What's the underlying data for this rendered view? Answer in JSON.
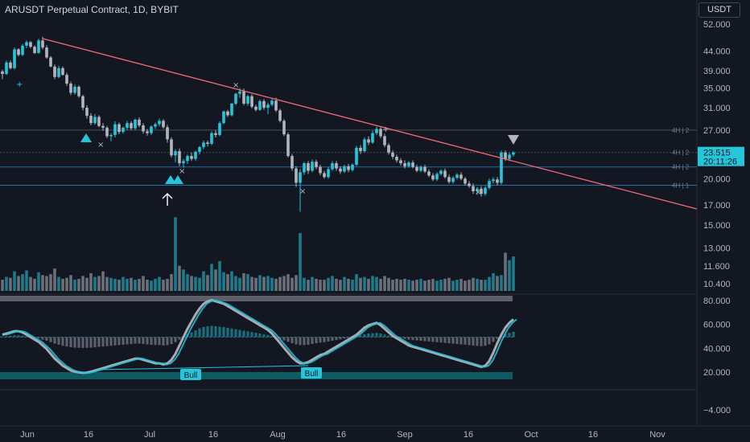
{
  "header": {
    "title": "ARUSDT Perpetual Contract, 1D, BYBIT",
    "currency": "USDT"
  },
  "colors": {
    "background": "#131722",
    "up": "#26c6da",
    "down": "#b2b5be",
    "trendline": "#f06a7a",
    "level": "#1f6fa8",
    "grid": "#363a45"
  },
  "chart_data": [
    {
      "type": "candlestick",
      "title": "ARUSDT Perpetual Contract, 1D, BYBIT",
      "y_scale": "log",
      "y_ticks": [
        "52.000",
        "44.000",
        "39.000",
        "35.000",
        "31.000",
        "27.000",
        "20.000",
        "17.000",
        "15.000",
        "13.000",
        "11.600",
        "10.400"
      ],
      "x_ticks": [
        "Jun",
        "16",
        "Jul",
        "16",
        "Aug",
        "16",
        "Sep",
        "16",
        "Oct",
        "16",
        "Nov"
      ],
      "last_price": "23.515",
      "countdown": "20:11:26",
      "level_labels": [
        "4H | 2",
        "4H | 2",
        "4H | 2",
        "4H | 1"
      ],
      "annotations": [
        "Bull",
        "Bull"
      ],
      "candles": [
        [
          38.8,
          39.2,
          37.0,
          38.2
        ],
        [
          38.2,
          41.5,
          38.0,
          41.0
        ],
        [
          41.0,
          41.5,
          39.3,
          39.6
        ],
        [
          39.6,
          45.0,
          39.3,
          44.5
        ],
        [
          44.5,
          44.8,
          42.6,
          43.0
        ],
        [
          43.0,
          46.0,
          42.7,
          45.5
        ],
        [
          45.5,
          47.0,
          44.8,
          46.5
        ],
        [
          46.5,
          46.8,
          44.8,
          45.2
        ],
        [
          45.2,
          45.6,
          43.2,
          43.5
        ],
        [
          43.5,
          47.5,
          43.3,
          47.0
        ],
        [
          47.0,
          48.1,
          44.5,
          45.0
        ],
        [
          45.0,
          45.6,
          42.0,
          42.3
        ],
        [
          42.3,
          42.7,
          39.8,
          40.0
        ],
        [
          40.0,
          40.5,
          37.0,
          37.5
        ],
        [
          37.5,
          40.2,
          37.2,
          39.6
        ],
        [
          39.6,
          40.0,
          37.8,
          38.0
        ],
        [
          38.0,
          38.5,
          35.5,
          36.0
        ],
        [
          36.0,
          36.4,
          33.5,
          34.0
        ],
        [
          34.0,
          35.8,
          33.6,
          35.3
        ],
        [
          35.3,
          35.6,
          33.0,
          33.3
        ],
        [
          33.3,
          33.6,
          30.5,
          31.0
        ],
        [
          31.0,
          31.5,
          29.0,
          29.5
        ],
        [
          29.5,
          30.0,
          27.8,
          28.2
        ],
        [
          28.2,
          29.8,
          27.9,
          29.3
        ],
        [
          29.3,
          29.6,
          27.5,
          27.7
        ],
        [
          27.7,
          28.2,
          26.9,
          27.4
        ],
        [
          27.4,
          27.7,
          25.7,
          26.0
        ],
        [
          26.0,
          26.5,
          25.2,
          26.2
        ],
        [
          26.2,
          28.5,
          25.8,
          28.0
        ],
        [
          28.0,
          28.3,
          26.3,
          26.7
        ],
        [
          26.7,
          27.6,
          26.4,
          27.4
        ],
        [
          27.4,
          28.6,
          27.0,
          28.2
        ],
        [
          28.2,
          28.5,
          27.0,
          27.3
        ],
        [
          27.3,
          29.0,
          27.0,
          28.8
        ],
        [
          28.8,
          29.2,
          27.5,
          27.8
        ],
        [
          27.8,
          28.2,
          26.4,
          26.8
        ],
        [
          26.8,
          27.2,
          26.1,
          26.5
        ],
        [
          26.5,
          27.8,
          26.2,
          27.6
        ],
        [
          27.6,
          28.3,
          27.2,
          28.0
        ],
        [
          28.0,
          29.0,
          27.6,
          28.6
        ],
        [
          28.6,
          28.9,
          27.2,
          27.5
        ],
        [
          27.5,
          27.9,
          25.0,
          25.5
        ],
        [
          25.5,
          25.8,
          22.8,
          23.1
        ],
        [
          23.1,
          24.0,
          22.1,
          23.7
        ],
        [
          23.7,
          24.1,
          21.6,
          22.0
        ],
        [
          22.0,
          22.6,
          21.4,
          22.3
        ],
        [
          22.3,
          23.2,
          21.9,
          23.0
        ],
        [
          23.0,
          23.5,
          22.3,
          22.6
        ],
        [
          22.6,
          23.8,
          22.3,
          23.6
        ],
        [
          23.6,
          24.5,
          23.2,
          24.3
        ],
        [
          24.3,
          25.3,
          24.0,
          25.0
        ],
        [
          25.0,
          25.3,
          24.4,
          24.8
        ],
        [
          24.8,
          26.8,
          24.6,
          26.5
        ],
        [
          26.5,
          27.0,
          25.8,
          26.2
        ],
        [
          26.2,
          28.5,
          26.0,
          28.2
        ],
        [
          28.2,
          30.5,
          28.0,
          30.3
        ],
        [
          30.3,
          30.6,
          29.3,
          29.6
        ],
        [
          29.6,
          32.0,
          29.4,
          31.8
        ],
        [
          31.8,
          34.0,
          31.5,
          33.8
        ],
        [
          33.8,
          35.0,
          33.0,
          34.3
        ],
        [
          34.3,
          34.9,
          31.5,
          31.8
        ],
        [
          31.8,
          33.6,
          31.4,
          33.3
        ],
        [
          33.3,
          33.7,
          30.9,
          31.2
        ],
        [
          31.2,
          31.6,
          30.3,
          30.6
        ],
        [
          30.6,
          32.6,
          30.4,
          32.3
        ],
        [
          32.3,
          32.7,
          30.6,
          31.0
        ],
        [
          31.0,
          32.0,
          29.8,
          31.6
        ],
        [
          31.6,
          32.8,
          31.3,
          32.4
        ],
        [
          32.4,
          33.0,
          30.2,
          30.5
        ],
        [
          30.5,
          30.8,
          28.3,
          28.6
        ],
        [
          28.6,
          28.9,
          26.0,
          26.3
        ],
        [
          26.3,
          26.6,
          22.8,
          23.0
        ],
        [
          23.0,
          23.3,
          21.0,
          21.3
        ],
        [
          21.3,
          21.6,
          19.0,
          19.5
        ],
        [
          19.5,
          21.2,
          16.3,
          20.8
        ],
        [
          20.8,
          22.2,
          20.5,
          22.0
        ],
        [
          22.0,
          22.3,
          20.6,
          21.0
        ],
        [
          21.0,
          22.5,
          20.8,
          22.2
        ],
        [
          22.2,
          22.5,
          21.2,
          21.5
        ],
        [
          21.5,
          21.8,
          20.4,
          20.7
        ],
        [
          20.7,
          21.0,
          20.0,
          20.2
        ],
        [
          20.2,
          21.5,
          20.0,
          21.2
        ],
        [
          21.2,
          22.3,
          21.0,
          22.0
        ],
        [
          22.0,
          22.3,
          21.0,
          21.3
        ],
        [
          21.3,
          21.6,
          20.6,
          20.9
        ],
        [
          20.9,
          21.8,
          20.7,
          21.6
        ],
        [
          21.6,
          21.9,
          20.8,
          21.1
        ],
        [
          21.1,
          22.0,
          20.9,
          21.8
        ],
        [
          21.8,
          24.5,
          21.6,
          24.2
        ],
        [
          24.2,
          24.6,
          23.3,
          23.7
        ],
        [
          23.7,
          25.8,
          23.5,
          25.5
        ],
        [
          25.5,
          26.0,
          24.6,
          25.0
        ],
        [
          25.0,
          26.9,
          24.8,
          26.5
        ],
        [
          26.5,
          27.6,
          26.2,
          27.2
        ],
        [
          27.2,
          27.5,
          25.7,
          26.0
        ],
        [
          26.0,
          26.4,
          24.3,
          24.6
        ],
        [
          24.6,
          24.9,
          23.2,
          23.5
        ],
        [
          23.5,
          23.8,
          22.6,
          22.9
        ],
        [
          22.9,
          23.2,
          22.1,
          22.4
        ],
        [
          22.4,
          22.7,
          21.7,
          22.0
        ],
        [
          22.0,
          22.4,
          21.3,
          21.6
        ],
        [
          21.6,
          22.3,
          21.4,
          22.1
        ],
        [
          22.1,
          22.4,
          21.3,
          21.5
        ],
        [
          21.5,
          21.8,
          20.8,
          21.0
        ],
        [
          21.0,
          21.7,
          20.8,
          21.5
        ],
        [
          21.5,
          21.8,
          20.7,
          20.9
        ],
        [
          20.9,
          21.2,
          20.2,
          20.4
        ],
        [
          20.4,
          20.7,
          19.7,
          19.9
        ],
        [
          19.9,
          20.8,
          19.7,
          20.6
        ],
        [
          20.6,
          21.2,
          20.4,
          21.0
        ],
        [
          21.0,
          21.3,
          20.0,
          20.2
        ],
        [
          20.2,
          20.5,
          19.4,
          19.6
        ],
        [
          19.6,
          20.3,
          19.4,
          20.1
        ],
        [
          20.1,
          20.7,
          19.9,
          20.5
        ],
        [
          20.5,
          20.8,
          19.8,
          20.0
        ],
        [
          20.0,
          20.2,
          19.2,
          19.4
        ],
        [
          19.4,
          19.7,
          18.9,
          19.1
        ],
        [
          19.1,
          19.4,
          18.2,
          18.5
        ],
        [
          18.5,
          19.0,
          18.1,
          18.8
        ],
        [
          18.8,
          19.1,
          17.9,
          18.2
        ],
        [
          18.2,
          19.1,
          18.0,
          18.9
        ],
        [
          18.9,
          20.0,
          18.7,
          19.7
        ],
        [
          19.7,
          20.2,
          19.4,
          19.9
        ],
        [
          19.9,
          20.2,
          19.2,
          19.5
        ],
        [
          19.5,
          23.8,
          19.3,
          23.5
        ],
        [
          23.5,
          23.8,
          22.3,
          22.6
        ],
        [
          22.6,
          23.5,
          22.3,
          23.2
        ],
        [
          23.2,
          23.7,
          22.9,
          23.515
        ]
      ],
      "volume": [
        1.2,
        1.5,
        1.4,
        2.1,
        1.6,
        1.8,
        2.2,
        1.5,
        1.3,
        2.0,
        1.7,
        1.6,
        1.8,
        2.4,
        1.5,
        1.3,
        1.4,
        1.7,
        1.2,
        1.3,
        1.6,
        1.4,
        1.9,
        1.5,
        1.6,
        2.1,
        1.5,
        1.4,
        1.3,
        1.2,
        1.5,
        1.3,
        1.4,
        1.2,
        1.3,
        1.6,
        1.2,
        1.1,
        1.3,
        1.5,
        1.2,
        1.3,
        1.8,
        7.9,
        2.7,
        2.3,
        1.8,
        1.6,
        1.5,
        1.4,
        2.1,
        1.7,
        2.9,
        2.3,
        3.2,
        2.0,
        1.8,
        2.1,
        1.6,
        1.4,
        1.9,
        1.8,
        1.5,
        1.4,
        1.7,
        1.5,
        1.6,
        1.4,
        1.3,
        1.5,
        1.6,
        1.8,
        1.4,
        1.7,
        6.2,
        1.4,
        1.2,
        1.5,
        1.3,
        1.2,
        1.2,
        1.4,
        1.6,
        1.3,
        1.2,
        1.5,
        1.3,
        1.2,
        1.8,
        1.4,
        1.5,
        1.3,
        1.6,
        1.5,
        1.3,
        1.6,
        1.4,
        1.2,
        1.3,
        1.2,
        1.3,
        1.2,
        1.1,
        1.2,
        1.3,
        1.1,
        1.2,
        1.3,
        1.1,
        1.2,
        1.3,
        1.4,
        1.1,
        1.2,
        1.3,
        1.1,
        1.2,
        1.4,
        1.3,
        1.2,
        1.2,
        1.5,
        1.9,
        1.6,
        1.7,
        4.1,
        3.3,
        3.7
      ],
      "oscillator": [
        52,
        53,
        54,
        55,
        55,
        54,
        52,
        50,
        48,
        46,
        43,
        40,
        36,
        32,
        29,
        26,
        24,
        22,
        21,
        20.5,
        20,
        20.3,
        21,
        22,
        23,
        24,
        25,
        26,
        27,
        28,
        29,
        30,
        31,
        32,
        32,
        31,
        30,
        29,
        28,
        28,
        27,
        28,
        31,
        36,
        43,
        50,
        57,
        63,
        69,
        74,
        78,
        80,
        81,
        80,
        79,
        78,
        76,
        74,
        72,
        70,
        68,
        66,
        64,
        62,
        60,
        58,
        56,
        53,
        49,
        45,
        41,
        37,
        33,
        30,
        28,
        28,
        29,
        31,
        33,
        35,
        36,
        38,
        40,
        42,
        44,
        46,
        48,
        50,
        52,
        55,
        58,
        60,
        61,
        62,
        60,
        57,
        54,
        51,
        49,
        47,
        45,
        43,
        42,
        41,
        40,
        39,
        38,
        37,
        36,
        35,
        34,
        33,
        32,
        31,
        30,
        29,
        28,
        27,
        26,
        25,
        26,
        30,
        37,
        45,
        52,
        58,
        62,
        65
      ]
    }
  ]
}
